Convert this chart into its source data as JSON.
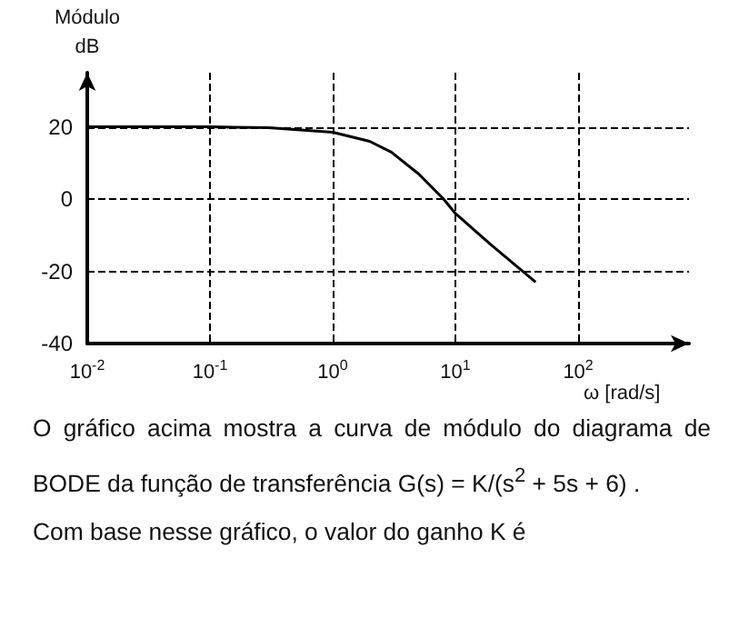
{
  "chart_data": {
    "type": "line",
    "xlabel": "ω [rad/s]",
    "ylabel": "Módulo\ndB",
    "x": [
      0.01,
      0.1,
      0.3,
      1,
      2,
      3,
      5,
      8,
      10,
      20,
      45
    ],
    "series": [
      {
        "color": "#000000",
        "values": [
          20,
          20,
          19.8,
          18.5,
          16,
          13,
          7,
          0,
          -4,
          -13,
          -23
        ]
      }
    ],
    "log": "x",
    "xlim": [
      0.01,
      800
    ],
    "xticks": [
      {
        "value": 0.01,
        "label": "10$^{-2}$"
      },
      {
        "value": 0.1,
        "label": "10$^{-1}$"
      },
      {
        "value": 1,
        "label": "10$^{0}$"
      },
      {
        "value": 10,
        "label": "10$^{1}$"
      },
      {
        "value": 100,
        "label": "10$^{2}$"
      }
    ],
    "ylim": [
      -40,
      35
    ],
    "yticks": [
      -40,
      -20,
      0,
      20
    ],
    "grid": true,
    "marker": "none",
    "line_style": "solid",
    "annotations": [
      "O gráfico acima mostra a curva de módulo do diagrama de BODE da função de transferência G(s) = K/(s$^{2}$ + 5s + 6) .",
      "Com base nesse gráfico, o valor do ganho K é"
    ]
  }
}
